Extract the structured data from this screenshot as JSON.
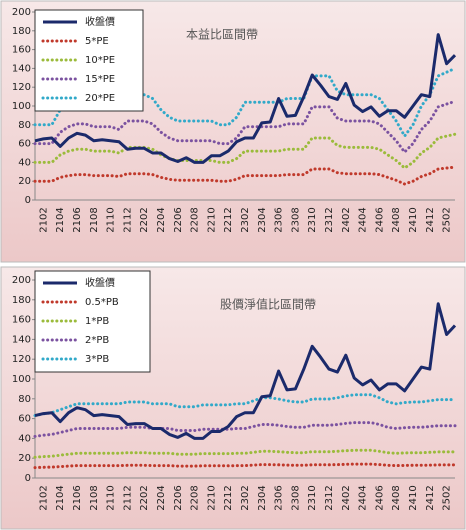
{
  "chart_data": [
    {
      "type": "line",
      "title": "本益比區間帶",
      "categories": [
        null,
        "2102",
        null,
        "2104",
        null,
        "2106",
        null,
        "2108",
        null,
        "2110",
        null,
        "2112",
        null,
        "2202",
        null,
        "2204",
        null,
        "2206",
        null,
        "2208",
        null,
        "2210",
        null,
        "2212",
        null,
        "2302",
        null,
        "2304",
        null,
        "2306",
        null,
        "2308",
        null,
        "2310",
        null,
        "2312",
        null,
        "2402",
        null,
        "2404",
        null,
        "2406",
        null,
        "2408",
        null,
        "2410",
        null,
        "2412",
        null,
        "2502",
        null
      ],
      "ylim": [
        0,
        200
      ],
      "yticks": [
        0,
        20,
        40,
        60,
        80,
        100,
        120,
        140,
        160,
        180,
        200
      ],
      "grid": false,
      "legend": "top-left",
      "series": [
        {
          "name": "收盤價",
          "color": "#1b2a6b",
          "style": "solid",
          "values": [
            63,
            65,
            66,
            57,
            66,
            71,
            69,
            63,
            64,
            63,
            62,
            54,
            55,
            55,
            50,
            50,
            44,
            41,
            45,
            40,
            40,
            47,
            47,
            52,
            62,
            66,
            66,
            82,
            83,
            108,
            89,
            90,
            110,
            133,
            122,
            110,
            107,
            124,
            101,
            94,
            99,
            89,
            95,
            95,
            88,
            100,
            112,
            110,
            176,
            145,
            154
          ]
        },
        {
          "name": "5*PE",
          "color": "#c0392b",
          "style": "dotted",
          "values": [
            20,
            20,
            20,
            24,
            26,
            27,
            27,
            26,
            26,
            26,
            25,
            28,
            28,
            28,
            27,
            24,
            22,
            21,
            21,
            21,
            21,
            21,
            20,
            20,
            22,
            26,
            26,
            26,
            26,
            26,
            27,
            27,
            27,
            33,
            33,
            33,
            29,
            28,
            28,
            28,
            28,
            27,
            24,
            21,
            17,
            20,
            25,
            28,
            33,
            34,
            35
          ]
        },
        {
          "name": "10*PE",
          "color": "#9bbb3b",
          "style": "dotted",
          "values": [
            40,
            40,
            40,
            48,
            52,
            54,
            54,
            52,
            52,
            52,
            50,
            56,
            56,
            56,
            54,
            48,
            44,
            42,
            42,
            42,
            42,
            42,
            40,
            40,
            44,
            52,
            52,
            52,
            52,
            52,
            54,
            54,
            54,
            66,
            66,
            66,
            58,
            56,
            56,
            56,
            56,
            54,
            48,
            42,
            34,
            40,
            50,
            56,
            66,
            68,
            70
          ]
        },
        {
          "name": "15*PE",
          "color": "#7b52a0",
          "style": "dotted",
          "values": [
            60,
            60,
            60,
            72,
            78,
            81,
            81,
            78,
            78,
            78,
            75,
            84,
            84,
            84,
            81,
            72,
            66,
            63,
            63,
            63,
            63,
            63,
            60,
            60,
            66,
            78,
            78,
            78,
            78,
            78,
            81,
            81,
            81,
            99,
            99,
            99,
            87,
            84,
            84,
            84,
            84,
            81,
            72,
            63,
            51,
            60,
            75,
            84,
            99,
            102,
            105
          ]
        },
        {
          "name": "20*PE",
          "color": "#31a9c9",
          "style": "dotted",
          "values": [
            80,
            80,
            80,
            96,
            104,
            108,
            108,
            104,
            104,
            104,
            100,
            112,
            112,
            112,
            108,
            96,
            88,
            84,
            84,
            84,
            84,
            84,
            80,
            80,
            88,
            104,
            104,
            104,
            104,
            104,
            108,
            108,
            108,
            132,
            132,
            132,
            116,
            112,
            112,
            112,
            112,
            108,
            96,
            84,
            68,
            80,
            100,
            112,
            132,
            136,
            140
          ]
        }
      ]
    },
    {
      "type": "line",
      "title": "股價淨值比區間帶",
      "categories": [
        null,
        "2102",
        null,
        "2104",
        null,
        "2106",
        null,
        "2108",
        null,
        "2110",
        null,
        "2112",
        null,
        "2202",
        null,
        "2204",
        null,
        "2206",
        null,
        "2208",
        null,
        "2210",
        null,
        "2212",
        null,
        "2302",
        null,
        "2304",
        null,
        "2306",
        null,
        "2308",
        null,
        "2310",
        null,
        "2312",
        null,
        "2402",
        null,
        "2404",
        null,
        "2406",
        null,
        "2408",
        null,
        "2410",
        null,
        "2412",
        null,
        "2502",
        null
      ],
      "ylim": [
        0,
        200
      ],
      "yticks": [
        0,
        20,
        40,
        60,
        80,
        100,
        120,
        140,
        160,
        180,
        200
      ],
      "grid": false,
      "legend": "top-left",
      "series": [
        {
          "name": "收盤價",
          "color": "#1b2a6b",
          "style": "solid",
          "values": [
            63,
            65,
            66,
            57,
            66,
            71,
            69,
            63,
            64,
            63,
            62,
            54,
            55,
            55,
            50,
            50,
            44,
            41,
            45,
            40,
            40,
            47,
            47,
            52,
            62,
            66,
            66,
            82,
            83,
            108,
            89,
            90,
            110,
            133,
            122,
            110,
            107,
            124,
            101,
            94,
            99,
            89,
            95,
            95,
            88,
            100,
            112,
            110,
            176,
            145,
            154
          ]
        },
        {
          "name": "0.5*PB",
          "color": "#c0392b",
          "style": "dotted",
          "values": [
            10.5,
            10.8,
            11,
            11.5,
            12,
            12.5,
            12.5,
            12.5,
            12.5,
            12.5,
            12.5,
            12.8,
            12.8,
            12.8,
            12.5,
            12.5,
            12.5,
            12,
            12,
            12,
            12.3,
            12.3,
            12.3,
            12.3,
            12.5,
            12.5,
            13,
            13.5,
            13.5,
            13.3,
            13,
            12.8,
            12.8,
            13.3,
            13.3,
            13.3,
            13.5,
            13.8,
            14,
            14,
            14,
            13.5,
            12.8,
            12.5,
            12.7,
            12.8,
            12.8,
            13,
            13.2,
            13.2,
            13.2
          ]
        },
        {
          "name": "1*PB",
          "color": "#9bbb3b",
          "style": "dotted",
          "values": [
            21,
            21.6,
            22,
            23,
            24,
            25,
            25,
            25,
            25,
            25,
            25,
            25.6,
            25.6,
            25.6,
            25,
            25,
            25,
            24,
            24,
            24,
            24.6,
            24.6,
            24.6,
            24.6,
            25,
            25,
            26,
            27,
            27,
            26.6,
            26,
            25.6,
            25.6,
            26.6,
            26.6,
            26.6,
            27,
            27.6,
            28,
            28,
            28,
            27,
            25.6,
            25,
            25.4,
            25.6,
            25.6,
            26,
            26.4,
            26.4,
            26.4
          ]
        },
        {
          "name": "2*PB",
          "color": "#7b52a0",
          "style": "dotted",
          "values": [
            42,
            43.2,
            44,
            46,
            48,
            50,
            50,
            50,
            50,
            50,
            50,
            51.2,
            51.2,
            51.2,
            50,
            50,
            50,
            48,
            48,
            48,
            49.2,
            49.2,
            49.2,
            49.2,
            50,
            50,
            52,
            54,
            54,
            53.2,
            52,
            51.2,
            51.2,
            53.2,
            53.2,
            53.2,
            54,
            55.2,
            56,
            56,
            56,
            54,
            51.2,
            50,
            50.8,
            51.2,
            51.2,
            52,
            52.8,
            52.8,
            52.8
          ]
        },
        {
          "name": "3*PB",
          "color": "#31a9c9",
          "style": "dotted",
          "values": [
            63,
            64.8,
            66,
            69,
            72,
            75,
            75,
            75,
            75,
            75,
            75,
            76.8,
            76.8,
            76.8,
            75,
            75,
            75,
            72,
            72,
            72,
            73.8,
            73.8,
            73.8,
            73.8,
            75,
            75,
            78,
            81,
            81,
            79.8,
            78,
            76.8,
            76.8,
            79.8,
            79.8,
            79.8,
            81,
            82.8,
            84,
            84,
            84,
            81,
            76.8,
            75,
            76.2,
            76.8,
            76.8,
            78,
            79.2,
            79.2,
            79.2
          ]
        }
      ]
    }
  ]
}
